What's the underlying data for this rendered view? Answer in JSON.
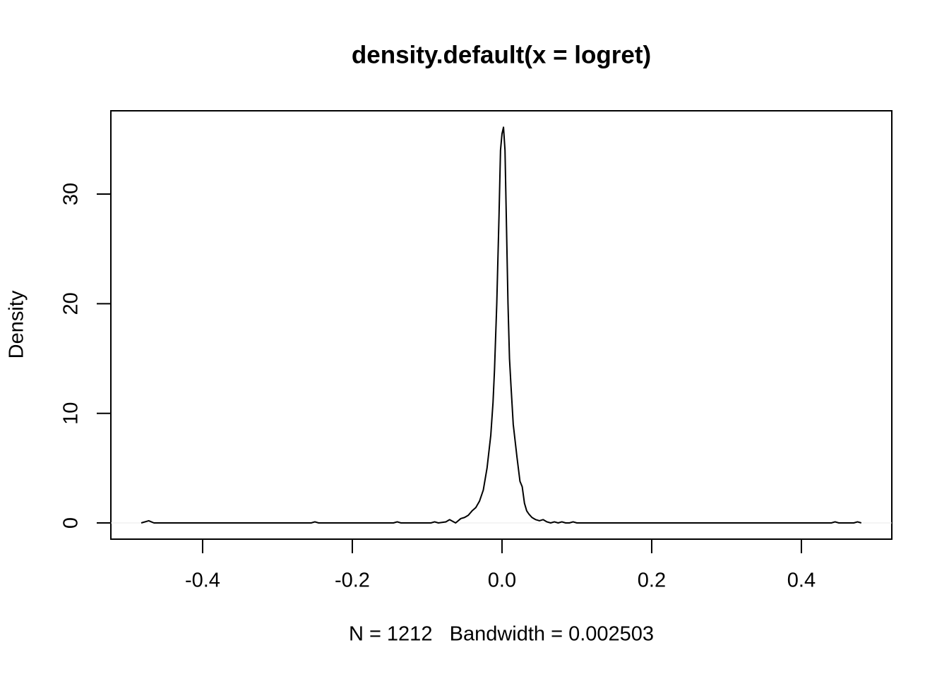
{
  "chart_data": {
    "type": "line",
    "title": "density.default(x = logret)",
    "x_label": "N = 1212   Bandwidth = 0.002503",
    "y_label": "Density",
    "x": [
      -0.482,
      -0.472,
      -0.465,
      -0.255,
      -0.25,
      -0.245,
      -0.145,
      -0.14,
      -0.135,
      -0.095,
      -0.09,
      -0.085,
      -0.075,
      -0.07,
      -0.062,
      -0.055,
      -0.05,
      -0.045,
      -0.04,
      -0.035,
      -0.03,
      -0.025,
      -0.02,
      -0.015,
      -0.012,
      -0.01,
      -0.007,
      -0.004,
      -0.002,
      0.0,
      0.002,
      0.004,
      0.006,
      0.008,
      0.01,
      0.012,
      0.015,
      0.02,
      0.024,
      0.027,
      0.03,
      0.033,
      0.036,
      0.04,
      0.045,
      0.05,
      0.055,
      0.06,
      0.065,
      0.07,
      0.075,
      0.08,
      0.085,
      0.09,
      0.095,
      0.1,
      0.44,
      0.445,
      0.45,
      0.47,
      0.475,
      0.48
    ],
    "series": [
      {
        "name": "density",
        "color": "#000000",
        "values": [
          0,
          0.2,
          0,
          0,
          0.1,
          0,
          0,
          0.1,
          0,
          0,
          0.1,
          0,
          0.1,
          0.3,
          0,
          0.4,
          0.5,
          0.7,
          1.1,
          1.4,
          2.0,
          3.0,
          5.0,
          8.0,
          11.0,
          14.0,
          20.0,
          28.0,
          34.0,
          35.5,
          36.1,
          34.0,
          27.0,
          20.0,
          15.0,
          12.5,
          9.0,
          6.0,
          3.8,
          3.3,
          1.8,
          1.1,
          0.8,
          0.5,
          0.3,
          0.2,
          0.3,
          0.1,
          0,
          0.1,
          0,
          0.1,
          0,
          0,
          0.1,
          0,
          0,
          0.1,
          0,
          0,
          0.1,
          0
        ]
      }
    ],
    "xlim": [
      -0.5226,
      0.5208
    ],
    "ylim": [
      -1.48,
      37.6
    ],
    "xticks": [
      {
        "value": -0.4,
        "label": "-0.4"
      },
      {
        "value": -0.2,
        "label": "-0.2"
      },
      {
        "value": 0,
        "label": "0.0"
      },
      {
        "value": 0.2,
        "label": "0.2"
      },
      {
        "value": 0.4,
        "label": "0.4"
      }
    ],
    "yticks": [
      0,
      10,
      20,
      30
    ],
    "zero_line": true
  }
}
